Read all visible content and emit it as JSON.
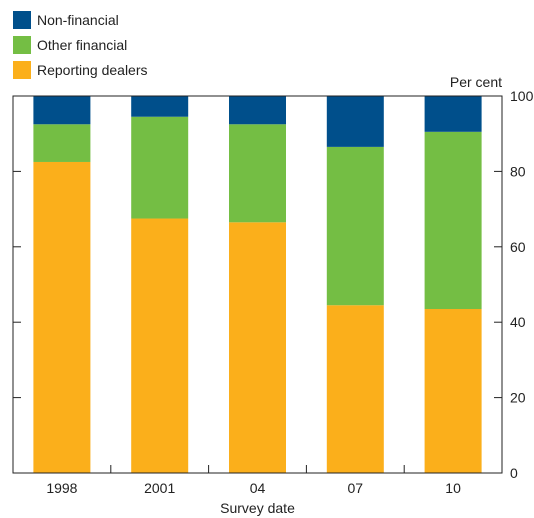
{
  "chart_data": {
    "type": "bar",
    "stacked": true,
    "categories": [
      "1998",
      "2001",
      "04",
      "07",
      "10"
    ],
    "series": [
      {
        "name": "Reporting dealers",
        "color": "#FBAF1B",
        "values": [
          82.5,
          67.5,
          66.5,
          44.5,
          43.5
        ]
      },
      {
        "name": "Other financial",
        "color": "#74BE44",
        "values": [
          10,
          27,
          26,
          42,
          47
        ]
      },
      {
        "name": "Non-financial",
        "color": "#004F8B",
        "values": [
          7.5,
          5.5,
          7.5,
          13.5,
          9.5
        ]
      }
    ],
    "legend": {
      "position": "top-left",
      "items": [
        {
          "label": "Non-financial",
          "color": "#004F8B"
        },
        {
          "label": "Other financial",
          "color": "#74BE44"
        },
        {
          "label": "Reporting dealers",
          "color": "#FBAF1B"
        }
      ]
    },
    "xlabel": "Survey date",
    "ylabel": "Per cent",
    "ylim": [
      0,
      100
    ],
    "yticks": [
      0,
      20,
      40,
      60,
      80,
      100
    ],
    "grid": false
  }
}
